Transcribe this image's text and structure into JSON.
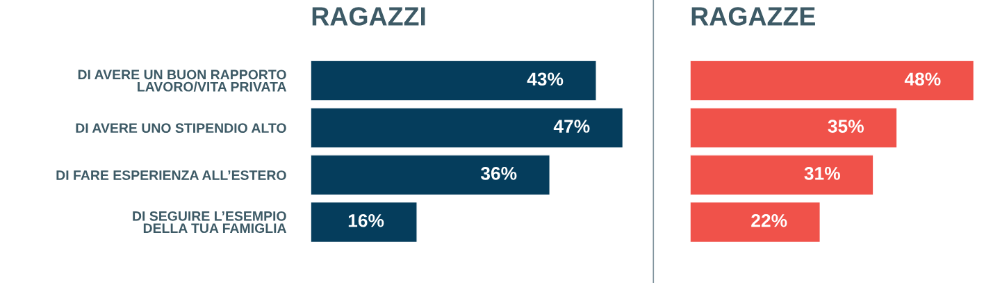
{
  "chart_data": [
    {
      "type": "bar",
      "orientation": "horizontal",
      "title": "RAGAZZI",
      "categories": [
        "DI AVERE UN BUON RAPPORTO\nLAVORO/VITA PRIVATA",
        "DI AVERE UNO STIPENDIO ALTO",
        "DI FARE ESPERIENZA ALL’ESTERO",
        "DI SEGUIRE L’ESEMPIO\nDELLA TUA FAMIGLIA"
      ],
      "values": [
        43,
        47,
        36,
        16
      ],
      "value_labels": [
        "43%",
        "47%",
        "36%",
        "16%"
      ],
      "color": "#053d5c",
      "tick_labels": "y",
      "grid": false,
      "legend": false
    },
    {
      "type": "bar",
      "orientation": "horizontal",
      "title": "RAGAZZE",
      "categories": [
        null,
        null,
        null,
        null
      ],
      "values": [
        48,
        35,
        31,
        22
      ],
      "value_labels": [
        "48%",
        "35%",
        "31%",
        "22%"
      ],
      "color": "#f0524a",
      "tick_labels": false,
      "grid": false,
      "legend": false
    }
  ]
}
